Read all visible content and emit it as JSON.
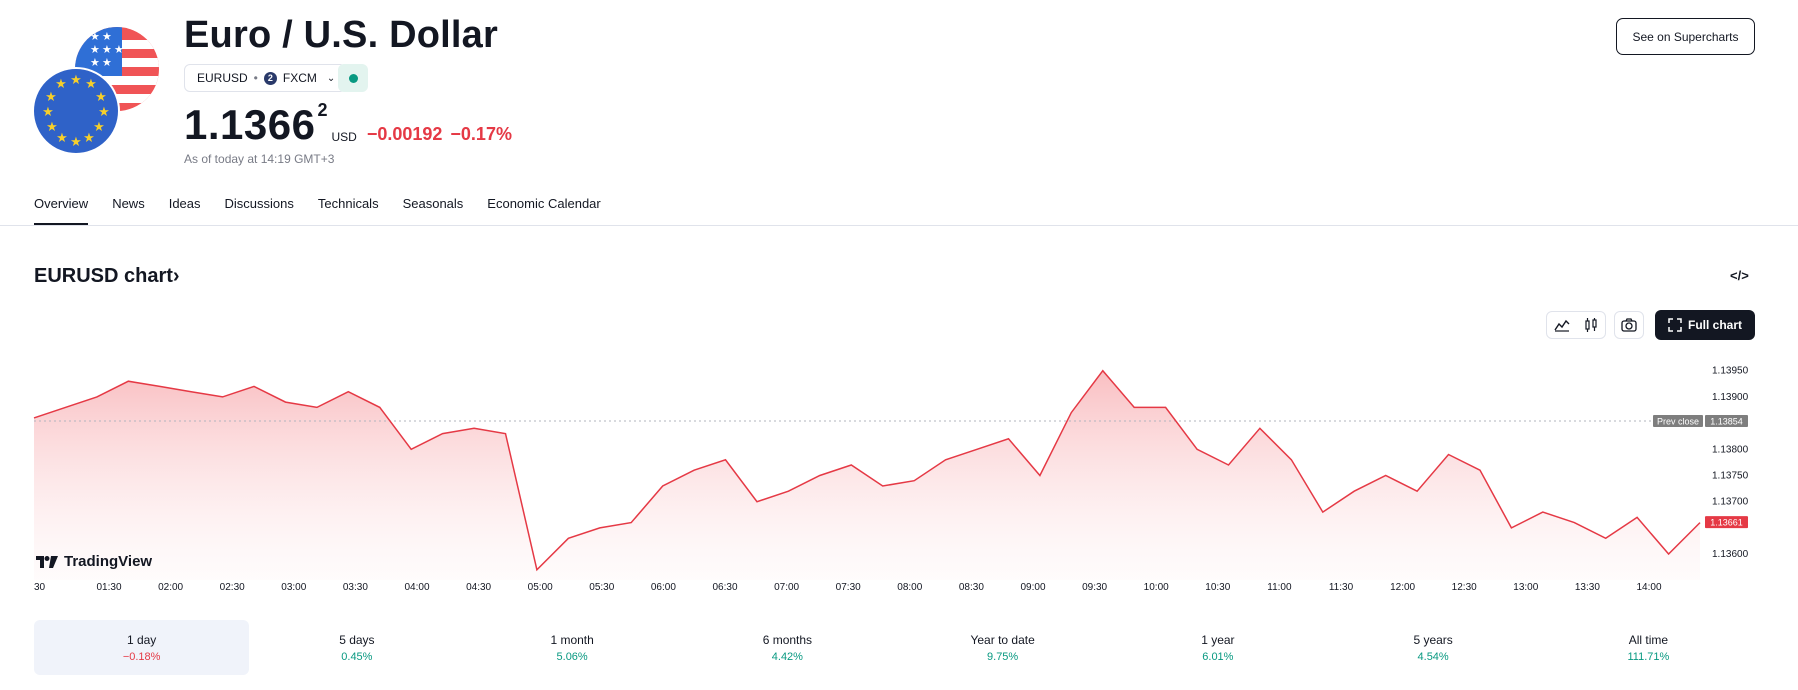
{
  "header": {
    "title": "Euro / U.S. Dollar",
    "symbol": "EURUSD",
    "symbol_separator": "•",
    "exchange_badge": "2",
    "exchange": "FXCM",
    "price_main": "1.1366",
    "price_sup": "2",
    "currency": "USD",
    "change": "−0.00192",
    "change_pct": "−0.17%",
    "as_of": "As of today at 14:19 GMT+3",
    "supercharts_button": "See on Supercharts",
    "colors": {
      "negative": "#e53945",
      "positive": "#089981",
      "market_open": "#089981"
    }
  },
  "tabs": [
    "Overview",
    "News",
    "Ideas",
    "Discussions",
    "Technicals",
    "Seasonals",
    "Economic Calendar"
  ],
  "active_tab": "Overview",
  "chart_section": {
    "title": "EURUSD chart",
    "title_arrow": "›",
    "embed_icon": "</>",
    "full_chart_button": "Full chart",
    "tools": [
      "area-chart-icon",
      "candles-icon",
      "camera-icon",
      "fullscreen-icon"
    ],
    "watermark": "TradingView"
  },
  "chart_data": {
    "type": "area",
    "color": "#e53945",
    "y_ticks": [
      1.1395,
      1.139,
      1.138,
      1.1375,
      1.137,
      1.136
    ],
    "y_tick_labels": [
      "1.13950",
      "1.13900",
      "1.13800",
      "1.13750",
      "1.13700",
      "1.13600"
    ],
    "x_tick_labels": [
      "30",
      "01:30",
      "02:00",
      "02:30",
      "03:00",
      "03:30",
      "04:00",
      "04:30",
      "05:00",
      "05:30",
      "06:00",
      "06:30",
      "07:00",
      "07:30",
      "08:00",
      "08:30",
      "09:00",
      "09:30",
      "10:00",
      "10:30",
      "11:00",
      "11:30",
      "12:00",
      "12:30",
      "13:00",
      "13:30",
      "14:00"
    ],
    "prev_close": {
      "label": "Prev close",
      "value": 1.13854,
      "value_label": "1.13854"
    },
    "last": {
      "value": 1.13661,
      "value_label": "1.13661"
    },
    "ylim": [
      1.1356,
      1.1398
    ],
    "x_time": [
      "01:00",
      "01:15",
      "01:30",
      "01:45",
      "02:00",
      "02:15",
      "02:30",
      "02:45",
      "03:00",
      "03:15",
      "03:30",
      "03:45",
      "04:00",
      "04:15",
      "04:30",
      "04:45",
      "05:00",
      "05:15",
      "05:30",
      "05:45",
      "06:00",
      "06:15",
      "06:30",
      "06:45",
      "07:00",
      "07:15",
      "07:30",
      "07:45",
      "08:00",
      "08:15",
      "08:30",
      "08:45",
      "09:00",
      "09:15",
      "09:30",
      "09:45",
      "10:00",
      "10:15",
      "10:30",
      "10:45",
      "11:00",
      "11:15",
      "11:30",
      "11:45",
      "12:00",
      "12:15",
      "12:30",
      "12:45",
      "13:00",
      "13:15",
      "13:30",
      "13:45",
      "14:00",
      "14:15"
    ],
    "y": [
      1.1386,
      1.1388,
      1.139,
      1.1393,
      1.1392,
      1.1391,
      1.139,
      1.1392,
      1.1389,
      1.1388,
      1.1391,
      1.1388,
      1.138,
      1.1383,
      1.1384,
      1.1383,
      1.1357,
      1.1363,
      1.1365,
      1.1366,
      1.1373,
      1.1376,
      1.1378,
      1.137,
      1.1372,
      1.1375,
      1.1377,
      1.1373,
      1.1374,
      1.1378,
      1.138,
      1.1382,
      1.1375,
      1.1387,
      1.1395,
      1.1388,
      1.1388,
      1.138,
      1.1377,
      1.1384,
      1.1378,
      1.1368,
      1.1372,
      1.1375,
      1.1372,
      1.1379,
      1.1376,
      1.1365,
      1.1368,
      1.1366,
      1.1363,
      1.1367,
      1.136,
      1.1366
    ]
  },
  "periods": [
    {
      "label": "1 day",
      "value": "−0.18%",
      "dir": "neg"
    },
    {
      "label": "5 days",
      "value": "0.45%",
      "dir": "pos"
    },
    {
      "label": "1 month",
      "value": "5.06%",
      "dir": "pos"
    },
    {
      "label": "6 months",
      "value": "4.42%",
      "dir": "pos"
    },
    {
      "label": "Year to date",
      "value": "9.75%",
      "dir": "pos"
    },
    {
      "label": "1 year",
      "value": "6.01%",
      "dir": "pos"
    },
    {
      "label": "5 years",
      "value": "4.54%",
      "dir": "pos"
    },
    {
      "label": "All time",
      "value": "111.71%",
      "dir": "pos"
    }
  ],
  "active_period": "1 day"
}
